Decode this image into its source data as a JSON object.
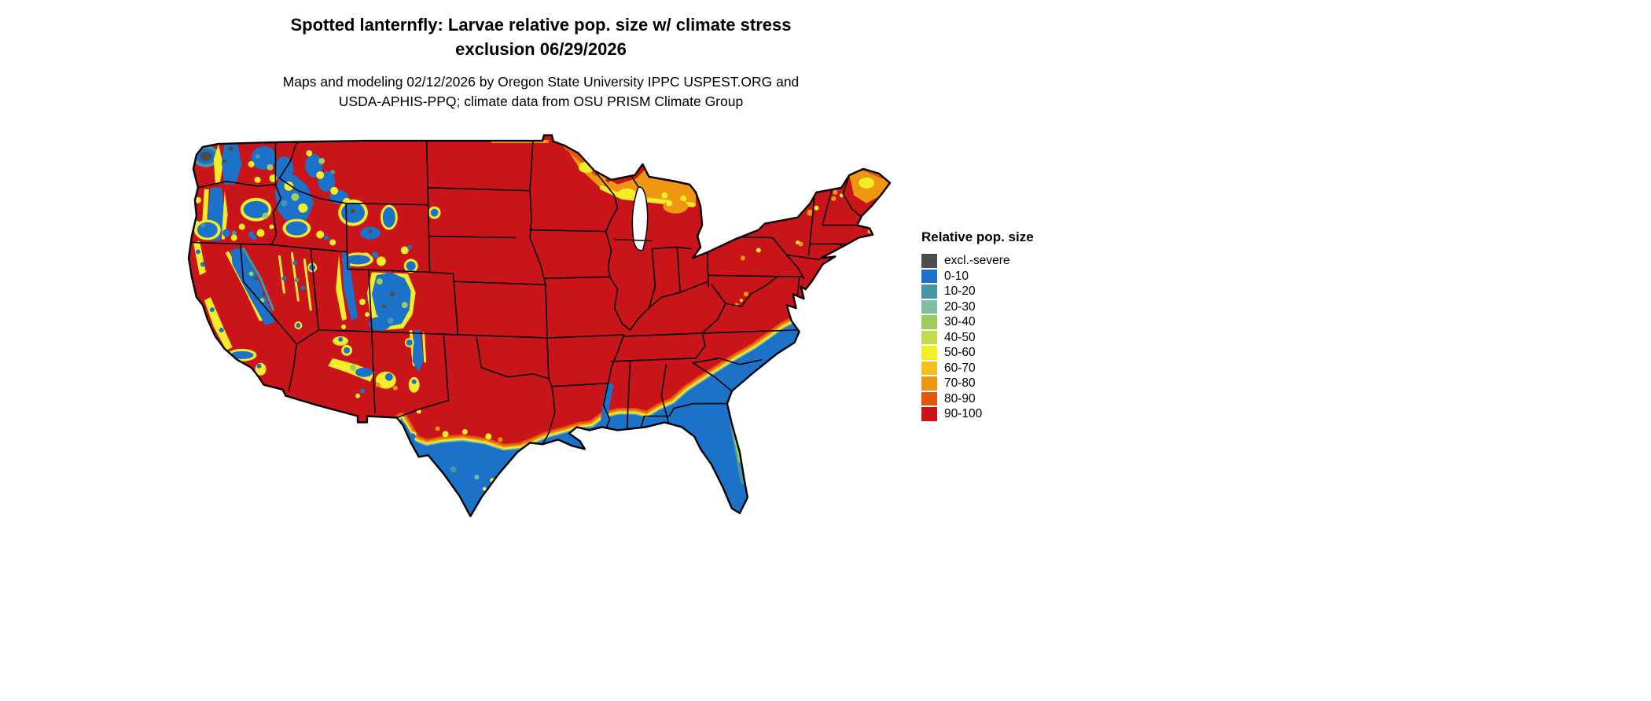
{
  "header": {
    "title_line1": "Spotted lanternfly: Larvae relative pop. size w/ climate stress",
    "title_line2": "exclusion 06/29/2026",
    "subtitle_line1": "Maps and modeling 02/12/2026 by Oregon State University IPPC USPEST.ORG and",
    "subtitle_line2": "USDA-APHIS-PPQ; climate data from OSU PRISM Climate Group"
  },
  "legend": {
    "title": "Relative pop. size",
    "entries": [
      {
        "label": "excl.-severe",
        "color": "#4D4D4D"
      },
      {
        "label": "0-10",
        "color": "#1B72C8"
      },
      {
        "label": "10-20",
        "color": "#4697A6"
      },
      {
        "label": "20-30",
        "color": "#7CBE9F"
      },
      {
        "label": "30-40",
        "color": "#9CCB5E"
      },
      {
        "label": "40-50",
        "color": "#C3DC4F"
      },
      {
        "label": "50-60",
        "color": "#F5EC2A"
      },
      {
        "label": "60-70",
        "color": "#F4C01E"
      },
      {
        "label": "70-80",
        "color": "#EF9612"
      },
      {
        "label": "80-90",
        "color": "#E2570F"
      },
      {
        "label": "90-100",
        "color": "#C9141A"
      }
    ]
  },
  "map": {
    "name": "Continental United States — spotted lanternfly larvae relative population size",
    "background": "#FFFFFF",
    "border_color": "#000000",
    "lake_color": "#FFFFFF"
  }
}
